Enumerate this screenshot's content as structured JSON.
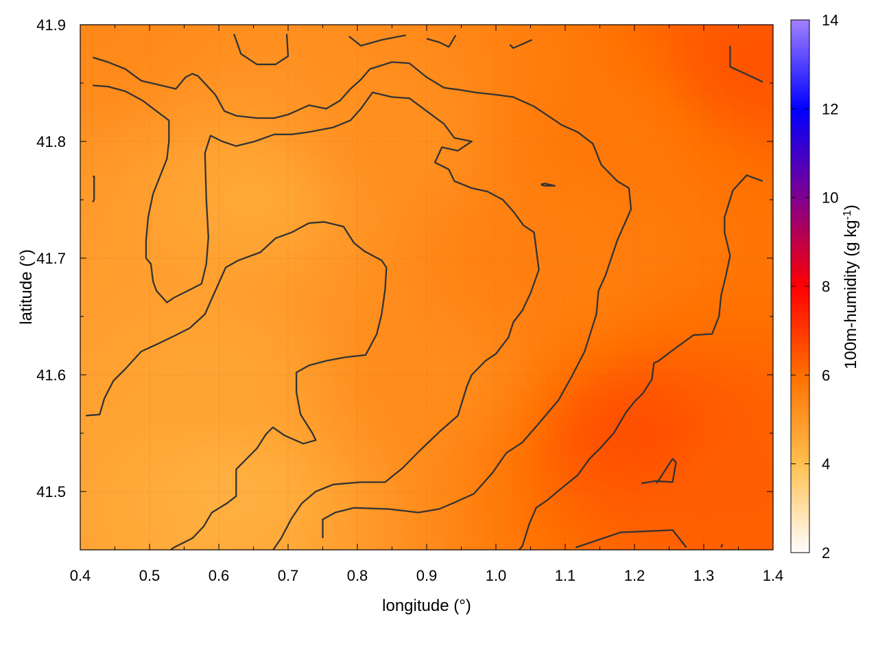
{
  "chart_data": {
    "type": "heatmap",
    "xlabel": "longitude (°)",
    "ylabel": "latitude (°)",
    "colorbar_label": "100m-humidity (g kg",
    "colorbar_label_sup": "-1",
    "colorbar_label_end": ")",
    "xlim": [
      0.4,
      1.4
    ],
    "ylim": [
      41.45,
      41.9
    ],
    "x_ticks": [
      0.4,
      0.5,
      0.6,
      0.7,
      0.8,
      0.9,
      1.0,
      1.1,
      1.2,
      1.3,
      1.4
    ],
    "x_tick_labels": [
      "0.4",
      "0.5",
      "0.6",
      "0.7",
      "0.8",
      "0.9",
      "1.0",
      "1.1",
      "1.2",
      "1.3",
      "1.4"
    ],
    "y_ticks": [
      41.5,
      41.6,
      41.7,
      41.8,
      41.9
    ],
    "y_tick_labels": [
      "41.5",
      "41.6",
      "41.7",
      "41.8",
      "41.9"
    ],
    "colorbar_range": [
      2,
      14
    ],
    "colorbar_ticks": [
      2,
      4,
      6,
      8,
      10,
      12,
      14
    ],
    "colorbar_tick_labels": [
      "2",
      "4",
      "6",
      "8",
      "10",
      "12",
      "14"
    ],
    "colormap": [
      {
        "v": 2,
        "color": "#ffffff"
      },
      {
        "v": 4,
        "color": "#ffc050"
      },
      {
        "v": 6,
        "color": "#ff7000"
      },
      {
        "v": 8,
        "color": "#ff0000"
      },
      {
        "v": 10,
        "color": "#800090"
      },
      {
        "v": 12,
        "color": "#0000ff"
      },
      {
        "v": 14,
        "color": "#a080ff"
      }
    ],
    "grid": true,
    "field_samples": [
      {
        "lon": 0.4,
        "lat": 41.9,
        "v": 5.4
      },
      {
        "lon": 0.65,
        "lat": 41.75,
        "v": 4.6
      },
      {
        "lon": 0.6,
        "lat": 41.6,
        "v": 4.7
      },
      {
        "lon": 0.62,
        "lat": 41.5,
        "v": 4.4
      },
      {
        "lon": 0.85,
        "lat": 41.8,
        "v": 5.2
      },
      {
        "lon": 0.9,
        "lat": 41.6,
        "v": 5.3
      },
      {
        "lon": 1.05,
        "lat": 41.7,
        "v": 5.6
      },
      {
        "lon": 1.15,
        "lat": 41.8,
        "v": 5.8
      },
      {
        "lon": 1.2,
        "lat": 41.55,
        "v": 6.6
      },
      {
        "lon": 1.38,
        "lat": 41.87,
        "v": 6.5
      },
      {
        "lon": 1.35,
        "lat": 41.5,
        "v": 6.3
      }
    ],
    "contours": [
      [
        [
          0.418,
          41.872
        ],
        [
          0.44,
          41.868
        ],
        [
          0.465,
          41.862
        ],
        [
          0.488,
          41.852
        ],
        [
          0.51,
          41.849
        ],
        [
          0.538,
          41.845
        ],
        [
          0.552,
          41.855
        ],
        [
          0.562,
          41.858
        ],
        [
          0.57,
          41.856
        ],
        [
          0.595,
          41.84
        ],
        [
          0.608,
          41.826
        ],
        [
          0.625,
          41.822
        ],
        [
          0.655,
          41.82
        ],
        [
          0.68,
          41.82
        ],
        [
          0.7,
          41.823
        ],
        [
          0.73,
          41.831
        ],
        [
          0.755,
          41.828
        ],
        [
          0.775,
          41.835
        ],
        [
          0.79,
          41.845
        ],
        [
          0.805,
          41.853
        ],
        [
          0.818,
          41.862
        ],
        [
          0.85,
          41.868
        ],
        [
          0.875,
          41.867
        ],
        [
          0.9,
          41.855
        ],
        [
          0.925,
          41.846
        ],
        [
          0.95,
          41.844
        ],
        [
          0.97,
          41.842
        ],
        [
          1.0,
          41.84
        ],
        [
          1.025,
          41.838
        ],
        [
          1.055,
          41.83
        ],
        [
          1.075,
          41.822
        ],
        [
          1.095,
          41.814
        ],
        [
          1.118,
          41.808
        ],
        [
          1.14,
          41.798
        ],
        [
          1.152,
          41.78
        ],
        [
          1.175,
          41.766
        ],
        [
          1.192,
          41.76
        ],
        [
          1.195,
          41.742
        ],
        [
          1.175,
          41.715
        ],
        [
          1.158,
          41.685
        ],
        [
          1.148,
          41.672
        ],
        [
          1.145,
          41.652
        ],
        [
          1.128,
          41.62
        ],
        [
          1.108,
          41.597
        ],
        [
          1.09,
          41.578
        ],
        [
          1.06,
          41.557
        ],
        [
          1.038,
          41.542
        ],
        [
          1.015,
          41.533
        ],
        [
          0.995,
          41.516
        ],
        [
          0.968,
          41.498
        ],
        [
          0.938,
          41.49
        ],
        [
          0.918,
          41.485
        ],
        [
          0.888,
          41.482
        ],
        [
          0.845,
          41.485
        ],
        [
          0.795,
          41.486
        ],
        [
          0.768,
          41.482
        ],
        [
          0.75,
          41.476
        ],
        [
          0.75,
          41.46
        ]
      ],
      [
        [
          0.418,
          41.848
        ],
        [
          0.44,
          41.847
        ],
        [
          0.465,
          41.843
        ],
        [
          0.49,
          41.835
        ],
        [
          0.51,
          41.826
        ],
        [
          0.528,
          41.818
        ],
        [
          0.528,
          41.8
        ],
        [
          0.525,
          41.785
        ],
        [
          0.515,
          41.77
        ],
        [
          0.505,
          41.755
        ],
        [
          0.498,
          41.735
        ],
        [
          0.495,
          41.715
        ],
        [
          0.495,
          41.7
        ],
        [
          0.502,
          41.695
        ],
        [
          0.505,
          41.68
        ],
        [
          0.51,
          41.672
        ],
        [
          0.525,
          41.662
        ],
        [
          0.535,
          41.666
        ],
        [
          0.555,
          41.672
        ],
        [
          0.575,
          41.678
        ],
        [
          0.582,
          41.695
        ],
        [
          0.585,
          41.718
        ],
        [
          0.582,
          41.75
        ],
        [
          0.58,
          41.79
        ],
        [
          0.588,
          41.805
        ],
        [
          0.605,
          41.8
        ],
        [
          0.625,
          41.796
        ],
        [
          0.652,
          41.8
        ],
        [
          0.68,
          41.806
        ],
        [
          0.705,
          41.806
        ],
        [
          0.73,
          41.808
        ],
        [
          0.765,
          41.812
        ],
        [
          0.79,
          41.818
        ],
        [
          0.805,
          41.828
        ],
        [
          0.822,
          41.842
        ],
        [
          0.85,
          41.838
        ],
        [
          0.875,
          41.837
        ],
        [
          0.9,
          41.826
        ],
        [
          0.925,
          41.815
        ],
        [
          0.94,
          41.803
        ],
        [
          0.965,
          41.8
        ],
        [
          0.945,
          41.792
        ],
        [
          0.922,
          41.795
        ],
        [
          0.912,
          41.782
        ],
        [
          0.932,
          41.776
        ],
        [
          0.94,
          41.766
        ],
        [
          0.965,
          41.76
        ],
        [
          0.988,
          41.757
        ],
        [
          1.01,
          41.75
        ],
        [
          1.025,
          41.74
        ],
        [
          1.04,
          41.728
        ],
        [
          1.055,
          41.722
        ],
        [
          1.062,
          41.69
        ],
        [
          1.05,
          41.67
        ],
        [
          1.038,
          41.655
        ],
        [
          1.025,
          41.645
        ],
        [
          1.018,
          41.632
        ],
        [
          1.0,
          41.618
        ],
        [
          0.985,
          41.612
        ],
        [
          0.965,
          41.6
        ],
        [
          0.958,
          41.59
        ],
        [
          0.945,
          41.565
        ],
        [
          0.92,
          41.552
        ],
        [
          0.89,
          41.535
        ],
        [
          0.865,
          41.52
        ],
        [
          0.84,
          41.508
        ],
        [
          0.805,
          41.508
        ],
        [
          0.765,
          41.506
        ],
        [
          0.74,
          41.5
        ],
        [
          0.72,
          41.49
        ],
        [
          0.705,
          41.477
        ],
        [
          0.69,
          41.46
        ],
        [
          0.675,
          41.447
        ]
      ],
      [
        [
          0.408,
          41.565
        ],
        [
          0.428,
          41.566
        ],
        [
          0.435,
          41.58
        ],
        [
          0.448,
          41.595
        ],
        [
          0.465,
          41.605
        ],
        [
          0.488,
          41.62
        ],
        [
          0.51,
          41.626
        ],
        [
          0.538,
          41.634
        ],
        [
          0.558,
          41.64
        ],
        [
          0.58,
          41.652
        ],
        [
          0.595,
          41.672
        ],
        [
          0.61,
          41.692
        ],
        [
          0.628,
          41.698
        ],
        [
          0.66,
          41.705
        ],
        [
          0.682,
          41.717
        ],
        [
          0.705,
          41.722
        ],
        [
          0.73,
          41.73
        ],
        [
          0.752,
          41.731
        ],
        [
          0.78,
          41.727
        ],
        [
          0.795,
          41.713
        ],
        [
          0.81,
          41.706
        ],
        [
          0.835,
          41.698
        ],
        [
          0.842,
          41.692
        ],
        [
          0.84,
          41.673
        ],
        [
          0.835,
          41.652
        ],
        [
          0.828,
          41.635
        ],
        [
          0.812,
          41.617
        ],
        [
          0.782,
          41.615
        ],
        [
          0.755,
          41.612
        ],
        [
          0.73,
          41.608
        ],
        [
          0.712,
          41.602
        ],
        [
          0.712,
          41.585
        ],
        [
          0.718,
          41.566
        ],
        [
          0.735,
          41.55
        ],
        [
          0.74,
          41.544
        ],
        [
          0.722,
          41.541
        ],
        [
          0.695,
          41.548
        ],
        [
          0.678,
          41.555
        ],
        [
          0.668,
          41.549
        ],
        [
          0.655,
          41.537
        ],
        [
          0.64,
          41.528
        ],
        [
          0.625,
          41.519
        ],
        [
          0.625,
          41.496
        ],
        [
          0.612,
          41.49
        ],
        [
          0.59,
          41.482
        ],
        [
          0.578,
          41.47
        ],
        [
          0.562,
          41.46
        ],
        [
          0.535,
          41.452
        ],
        [
          0.52,
          41.445
        ]
      ],
      [
        [
          0.622,
          41.892
        ],
        [
          0.632,
          41.875
        ],
        [
          0.655,
          41.866
        ],
        [
          0.682,
          41.866
        ],
        [
          0.7,
          41.873
        ],
        [
          0.698,
          41.892
        ]
      ],
      [
        [
          0.788,
          41.89
        ],
        [
          0.805,
          41.882
        ],
        [
          0.835,
          41.887
        ],
        [
          0.87,
          41.891
        ]
      ],
      [
        [
          0.9,
          41.888
        ],
        [
          0.918,
          41.885
        ],
        [
          0.932,
          41.881
        ],
        [
          0.942,
          41.891
        ]
      ],
      [
        [
          1.02,
          41.883
        ],
        [
          1.025,
          41.88
        ],
        [
          1.052,
          41.887
        ]
      ],
      [
        [
          0.418,
          41.77
        ],
        [
          0.42,
          41.77
        ],
        [
          0.42,
          41.75
        ],
        [
          0.418,
          41.748
        ]
      ],
      [
        [
          1.065,
          41.763
        ],
        [
          1.07,
          41.762
        ],
        [
          1.085,
          41.762
        ],
        [
          1.07,
          41.764
        ],
        [
          1.065,
          41.763
        ]
      ],
      [
        [
          1.338,
          41.882
        ],
        [
          1.338,
          41.864
        ],
        [
          1.36,
          41.858
        ],
        [
          1.385,
          41.851
        ]
      ],
      [
        [
          1.385,
          41.766
        ],
        [
          1.362,
          41.771
        ],
        [
          1.342,
          41.758
        ],
        [
          1.33,
          41.735
        ],
        [
          1.33,
          41.722
        ],
        [
          1.338,
          41.702
        ],
        [
          1.332,
          41.685
        ],
        [
          1.325,
          41.668
        ],
        [
          1.322,
          41.65
        ],
        [
          1.312,
          41.635
        ],
        [
          1.285,
          41.634
        ],
        [
          1.255,
          41.621
        ],
        [
          1.235,
          41.612
        ],
        [
          1.228,
          41.61
        ],
        [
          1.225,
          41.596
        ],
        [
          1.212,
          41.584
        ],
        [
          1.2,
          41.577
        ],
        [
          1.188,
          41.568
        ],
        [
          1.17,
          41.55
        ],
        [
          1.152,
          41.538
        ],
        [
          1.135,
          41.528
        ],
        [
          1.118,
          41.514
        ],
        [
          1.095,
          41.503
        ],
        [
          1.075,
          41.493
        ],
        [
          1.058,
          41.486
        ],
        [
          1.048,
          41.472
        ],
        [
          1.038,
          41.453
        ],
        [
          1.025,
          41.445
        ]
      ],
      [
        [
          1.21,
          41.507
        ],
        [
          1.23,
          41.509
        ],
        [
          1.255,
          41.508
        ],
        [
          1.26,
          41.525
        ],
        [
          1.255,
          41.528
        ],
        [
          1.232,
          41.507
        ]
      ],
      [
        [
          1.115,
          41.452
        ],
        [
          1.145,
          41.458
        ],
        [
          1.18,
          41.465
        ],
        [
          1.22,
          41.466
        ],
        [
          1.255,
          41.467
        ],
        [
          1.275,
          41.452
        ]
      ],
      [
        [
          1.325,
          41.452
        ],
        [
          1.327,
          41.455
        ]
      ]
    ]
  }
}
